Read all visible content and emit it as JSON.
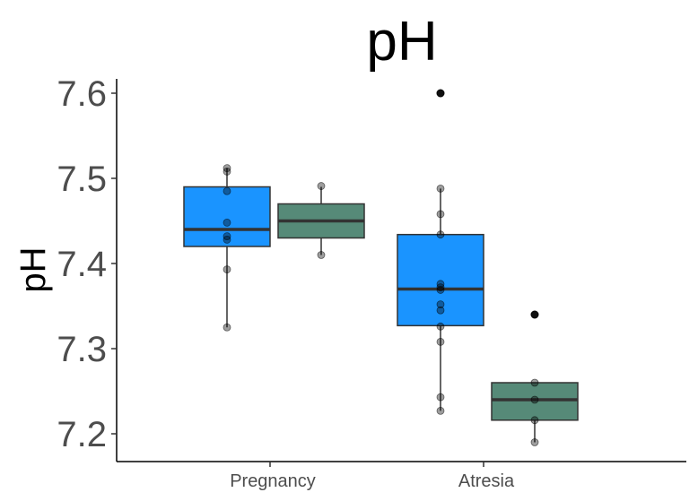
{
  "chart_data": {
    "type": "box",
    "title": "pH",
    "xlabel": "",
    "ylabel": "pH",
    "categories": [
      "Pregnancy",
      "Atresia"
    ],
    "ylim": [
      7.168,
      7.62
    ],
    "yticks": [
      7.2,
      7.3,
      7.4,
      7.5,
      7.6
    ],
    "ytick_labels": [
      "7.2",
      "7.3",
      "7.4",
      "7.5",
      "7.6"
    ],
    "grid": false,
    "legend": "none",
    "series": [
      {
        "color": "#1a94ff",
        "boxes": [
          {
            "category": "Pregnancy",
            "min": 7.325,
            "q1": 7.42,
            "median": 7.44,
            "q3": 7.49,
            "max": 7.512,
            "outliers": [],
            "points": [
              7.512,
              7.508,
              7.485,
              7.448,
              7.432,
              7.428,
              7.393,
              7.325
            ]
          },
          {
            "category": "Atresia",
            "min": 7.227,
            "q1": 7.327,
            "median": 7.37,
            "q3": 7.434,
            "max": 7.488,
            "outliers": [
              7.6
            ],
            "points": [
              7.6,
              7.488,
              7.458,
              7.434,
              7.376,
              7.372,
              7.369,
              7.352,
              7.345,
              7.326,
              7.308,
              7.243,
              7.227
            ]
          }
        ]
      },
      {
        "color": "#568a78",
        "boxes": [
          {
            "category": "Pregnancy",
            "min": 7.41,
            "q1": 7.43,
            "median": 7.45,
            "q3": 7.47,
            "max": 7.49,
            "outliers": [],
            "points": [
              7.491,
              7.41
            ]
          },
          {
            "category": "Atresia",
            "min": 7.19,
            "q1": 7.216,
            "median": 7.24,
            "q3": 7.26,
            "max": 7.26,
            "outliers": [
              7.34
            ],
            "points": [
              7.34,
              7.26,
              7.24,
              7.216,
              7.19
            ]
          }
        ]
      }
    ]
  }
}
